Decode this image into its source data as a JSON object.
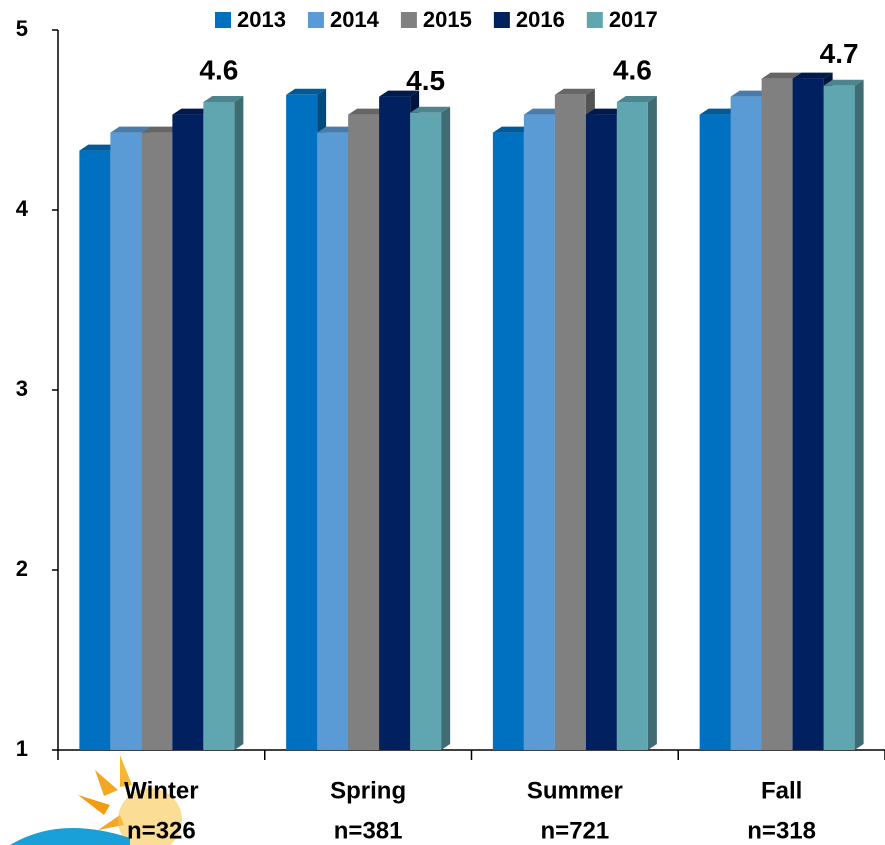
{
  "chart_data": {
    "type": "bar3d",
    "categories": [
      "Winter",
      "Spring",
      "Summer",
      "Fall"
    ],
    "category_notes": [
      "n=326",
      "n=381",
      "n=721",
      "n=318"
    ],
    "series": [
      {
        "name": "2013",
        "color": "#0070c0",
        "values": [
          4.33,
          4.64,
          4.43,
          4.53
        ]
      },
      {
        "name": "2014",
        "color": "#5b9bd5",
        "values": [
          4.43,
          4.43,
          4.53,
          4.63
        ]
      },
      {
        "name": "2015",
        "color": "#808080",
        "values": [
          4.43,
          4.53,
          4.64,
          4.73
        ]
      },
      {
        "name": "2016",
        "color": "#002060",
        "values": [
          4.53,
          4.63,
          4.53,
          4.73
        ]
      },
      {
        "name": "2017",
        "color": "#5fa6b0",
        "values": [
          4.6,
          4.54,
          4.6,
          4.69
        ],
        "value_labels": [
          "4.6",
          "4.5",
          "4.6",
          "4.7"
        ]
      }
    ],
    "ylim": [
      1,
      5
    ],
    "yticks": [
      1,
      2,
      3,
      4,
      5
    ],
    "legend": "top"
  }
}
